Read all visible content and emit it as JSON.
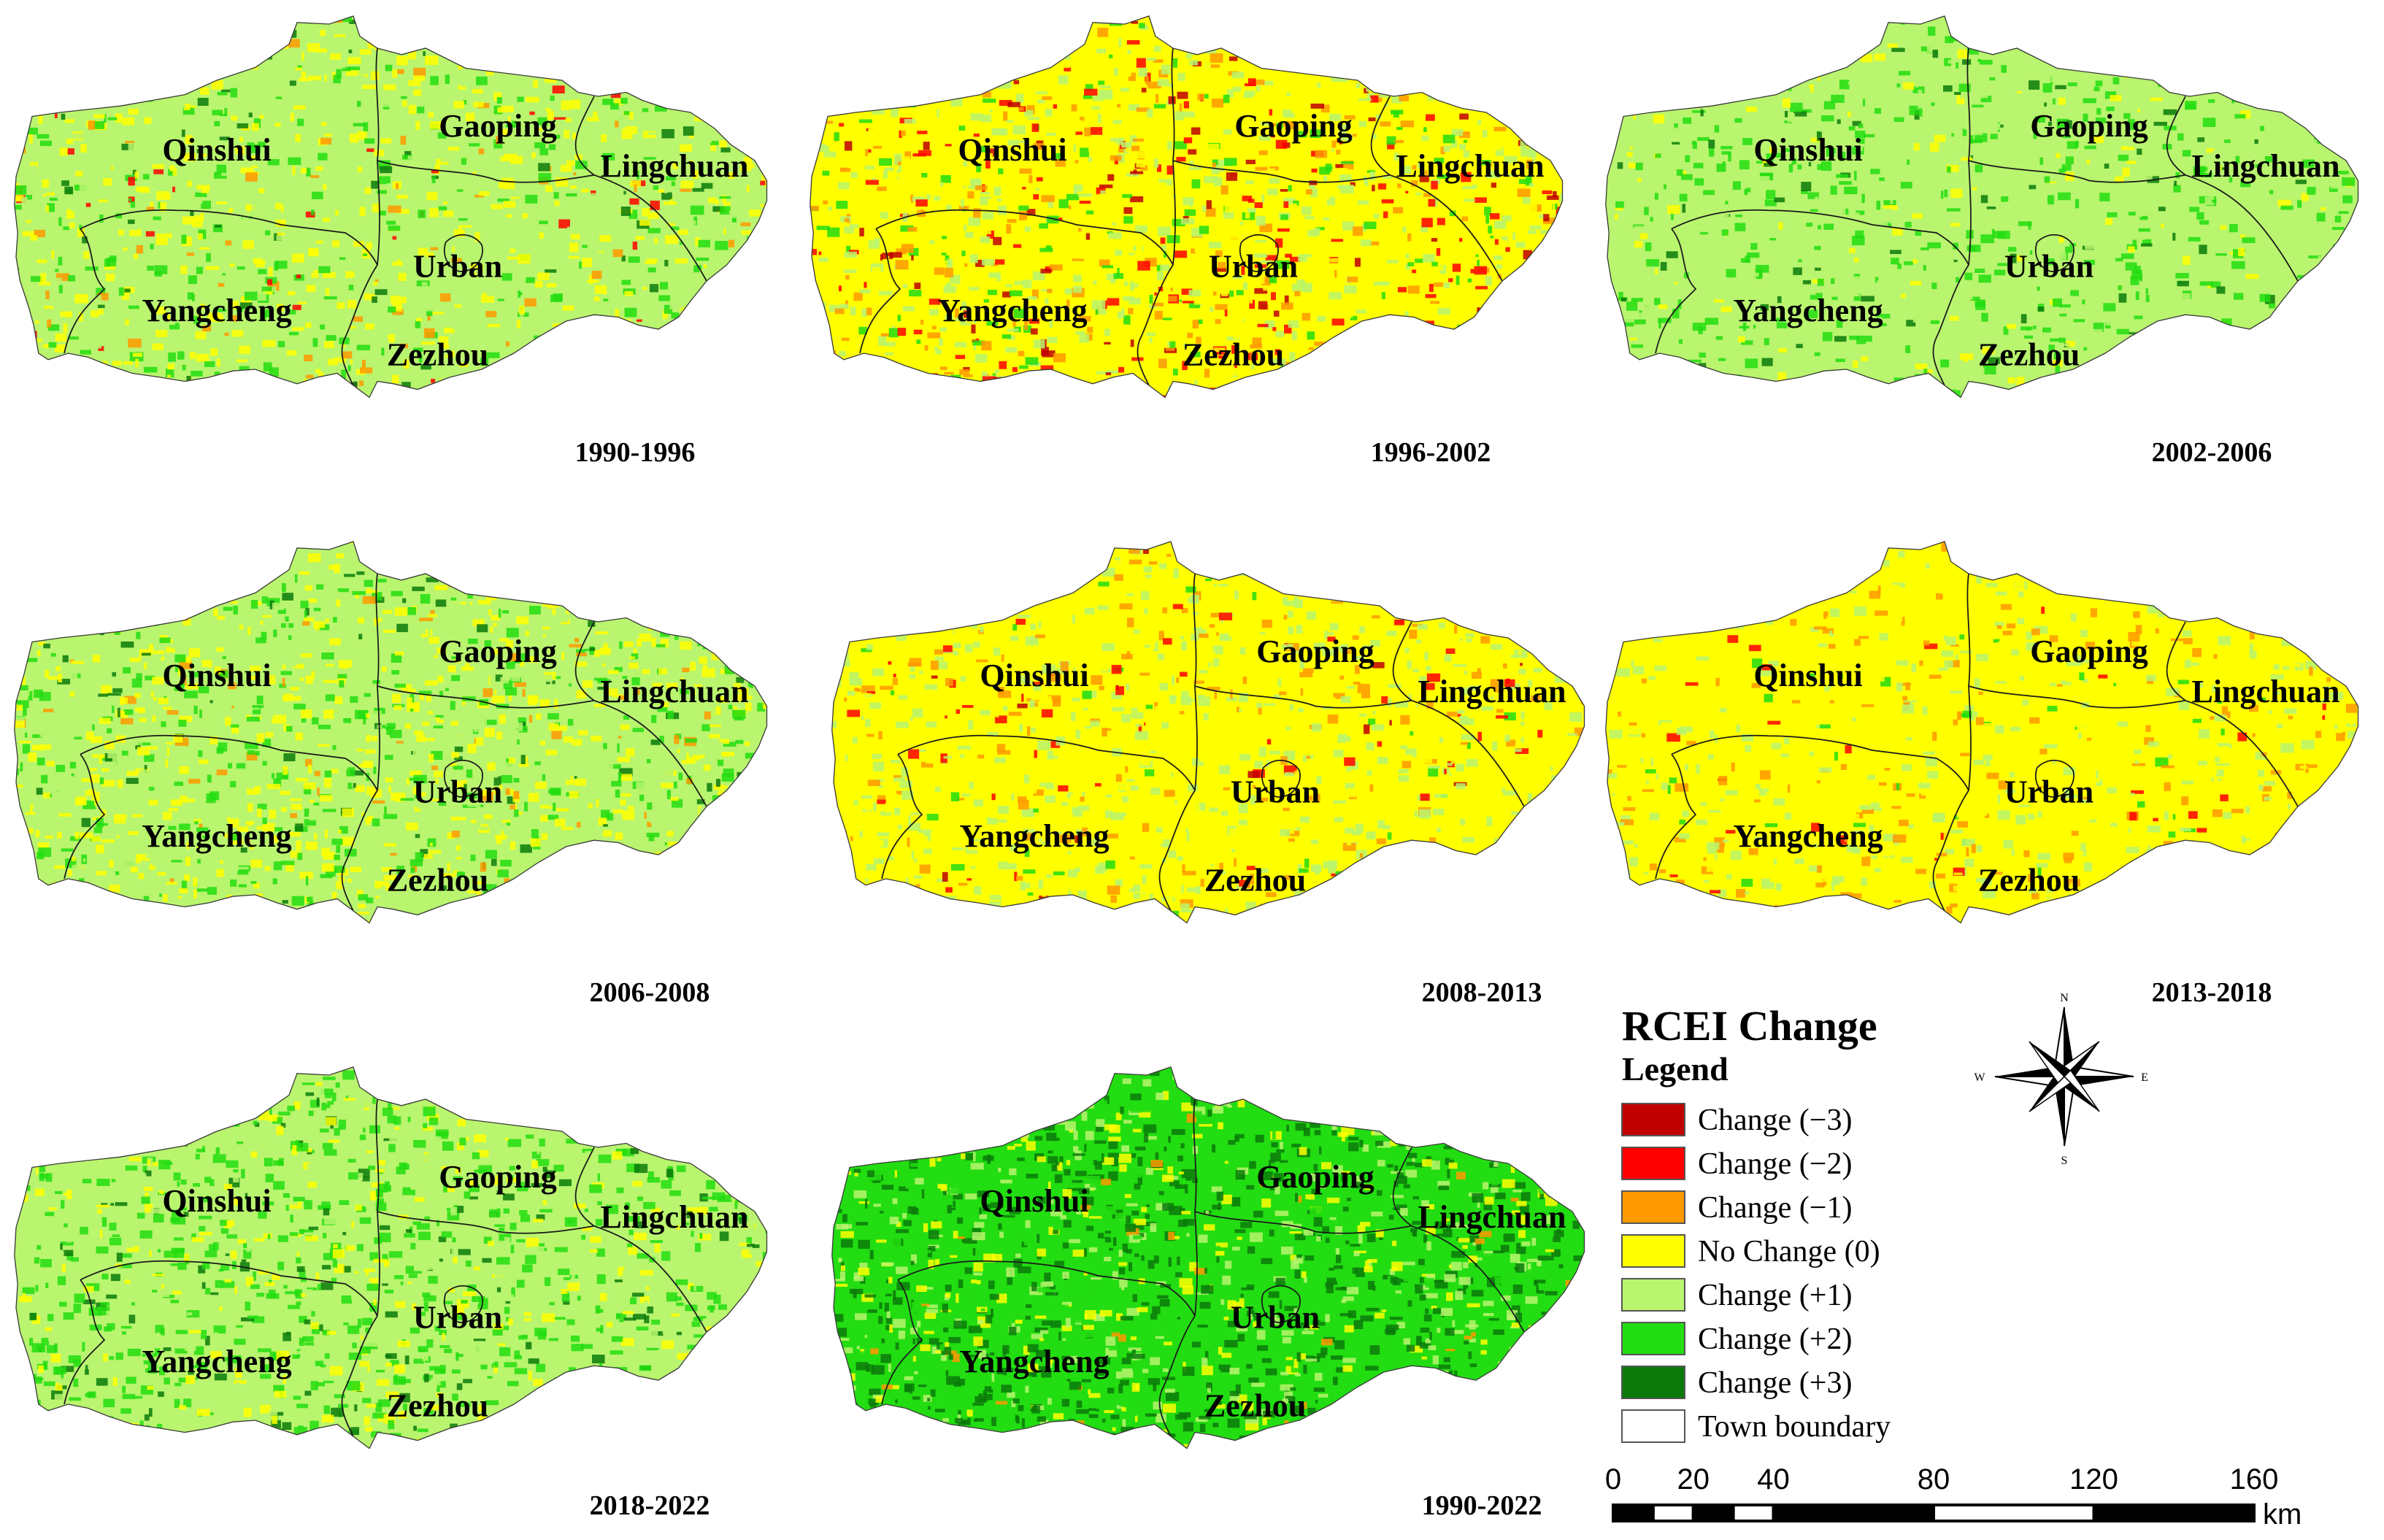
{
  "colors": {
    "change_m3": "#c00000",
    "change_m2": "#ff0000",
    "change_m1": "#ff9900",
    "no_change": "#ffff00",
    "change_p1": "#b9f56e",
    "change_p2": "#22dd11",
    "change_p3": "#0b7a0b",
    "town_boundary": "#ffffff"
  },
  "counties": [
    "Qinshui",
    "Gaoping",
    "Lingchuan",
    "Urban",
    "Yangcheng",
    "Zezhou"
  ],
  "panels": [
    {
      "period": "1990-1996",
      "mix": {
        "change_m2": 0.02,
        "change_m1": 0.03,
        "no_change": 0.22,
        "change_p1": 0.55,
        "change_p2": 0.15,
        "change_p3": 0.03
      }
    },
    {
      "period": "1996-2002",
      "mix": {
        "change_m3": 0.04,
        "change_m2": 0.08,
        "change_m1": 0.12,
        "no_change": 0.46,
        "change_p1": 0.22,
        "change_p2": 0.08
      }
    },
    {
      "period": "2002-2006",
      "mix": {
        "no_change": 0.06,
        "change_p1": 0.7,
        "change_p2": 0.2,
        "change_p3": 0.04
      }
    },
    {
      "period": "2006-2008",
      "mix": {
        "change_m1": 0.03,
        "no_change": 0.3,
        "change_p1": 0.45,
        "change_p2": 0.18,
        "change_p3": 0.04
      }
    },
    {
      "period": "2008-2013",
      "mix": {
        "change_m3": 0.01,
        "change_m2": 0.03,
        "change_m1": 0.1,
        "no_change": 0.6,
        "change_p1": 0.24,
        "change_p2": 0.02
      }
    },
    {
      "period": "2013-2018",
      "mix": {
        "change_m2": 0.02,
        "change_m1": 0.1,
        "no_change": 0.7,
        "change_p1": 0.16,
        "change_p2": 0.02
      }
    },
    {
      "period": "2018-2022",
      "mix": {
        "no_change": 0.12,
        "change_p1": 0.48,
        "change_p2": 0.32,
        "change_p3": 0.08
      }
    },
    {
      "period": "1990-2022",
      "mix": {
        "change_m1": 0.02,
        "no_change": 0.12,
        "change_p1": 0.16,
        "change_p2": 0.38,
        "change_p3": 0.32
      }
    }
  ],
  "legend": {
    "title": "RCEI Change",
    "subtitle": "Legend",
    "items": [
      {
        "label": "Change (−3)",
        "color_key": "change_m3"
      },
      {
        "label": "Change (−2)",
        "color_key": "change_m2"
      },
      {
        "label": "Change (−1)",
        "color_key": "change_m1"
      },
      {
        "label": "No Change (0)",
        "color_key": "no_change"
      },
      {
        "label": "Change (+1)",
        "color_key": "change_p1"
      },
      {
        "label": "Change (+2)",
        "color_key": "change_p2"
      },
      {
        "label": "Change (+3)",
        "color_key": "change_p3"
      },
      {
        "label": "Town boundary",
        "color_key": "town_boundary"
      }
    ]
  },
  "scale_bar": {
    "ticks": [
      "0",
      "20",
      "40",
      "80",
      "120",
      "160"
    ],
    "unit": "km"
  },
  "compass": {
    "n": "N",
    "s": "S",
    "e": "E",
    "w": "W"
  }
}
